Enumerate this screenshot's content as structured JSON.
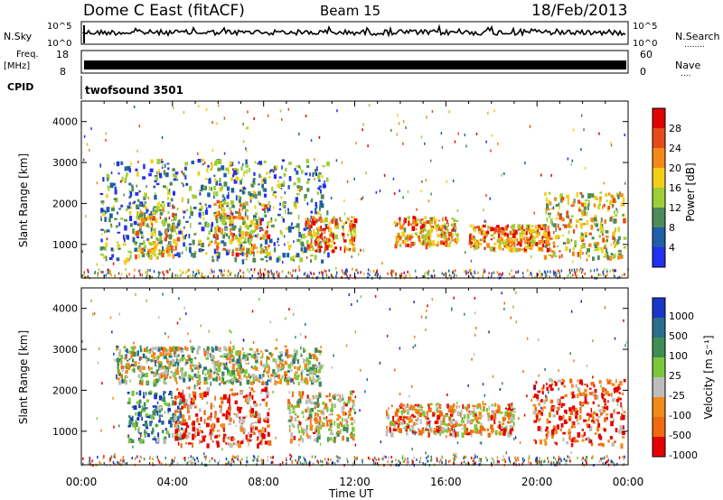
{
  "header": {
    "station": "Dome C East (fitACF)",
    "beam": "Beam 15",
    "date": "18/Feb/2013"
  },
  "side_labels": {
    "nsky": "N.Sky",
    "freq": "Freq.",
    "freq_unit": "[MHz]",
    "cpid": "CPID",
    "nsearch": "N.Search",
    "nave": "Nave",
    "dots": "........",
    "dots_short": "...."
  },
  "noise_panel": {
    "left_ticks": [
      "10^5",
      "10^0"
    ],
    "right_ticks": [
      "10^5",
      "10^0"
    ]
  },
  "freq_panel": {
    "left_ticks": [
      "18",
      "8"
    ],
    "right_ticks": [
      "60",
      "0"
    ]
  },
  "cpid_panel": {
    "program": "twofsound 3501"
  },
  "chart_data": [
    {
      "type": "heatmap",
      "name": "power",
      "ylabel": "Slant Range [km]",
      "yticks": [
        "4000",
        "3000",
        "2000",
        "1000"
      ],
      "colorbar_label": "Power [dB]",
      "colorbar_ticks": [
        "28",
        "24",
        "20",
        "16",
        "12",
        "8",
        "4"
      ],
      "colors": [
        "#2430f0",
        "#1f5ea8",
        "#4e8a5a",
        "#9ccf38",
        "#f2cf18",
        "#f38a18",
        "#e8491a",
        "#e00000"
      ],
      "regions": [
        {
          "t0": 0.8,
          "t1": 10.8,
          "r0": 620,
          "r1": 3100,
          "level": 0.3
        },
        {
          "t0": 2.3,
          "t1": 4.2,
          "r0": 750,
          "r1": 2000,
          "level": 0.55
        },
        {
          "t0": 5.8,
          "t1": 8.2,
          "r0": 800,
          "r1": 2100,
          "level": 0.6
        },
        {
          "t0": 9.8,
          "t1": 12.0,
          "r0": 850,
          "r1": 1700,
          "level": 0.7
        },
        {
          "t0": 13.7,
          "t1": 16.5,
          "r0": 1000,
          "r1": 1700,
          "level": 0.65
        },
        {
          "t0": 17.0,
          "t1": 20.5,
          "r0": 900,
          "r1": 1500,
          "level": 0.7
        },
        {
          "t0": 20.3,
          "t1": 23.8,
          "r0": 700,
          "r1": 2300,
          "level": 0.55
        }
      ]
    },
    {
      "type": "heatmap",
      "name": "velocity",
      "xlabel": "Time UT",
      "ylabel": "Slant Range [km]",
      "xticks": [
        "00:00",
        "04:00",
        "08:00",
        "12:00",
        "16:00",
        "20:00",
        "00:00"
      ],
      "yticks": [
        "4000",
        "3000",
        "2000",
        "1000"
      ],
      "colorbar_label": "Velocity [m s⁻¹]",
      "colorbar_ticks": [
        "1000",
        "500",
        "100",
        "25",
        "-25",
        "-100",
        "-500",
        "-1000"
      ],
      "colors": [
        "#1a36c8",
        "#2a6e8e",
        "#3f8c55",
        "#7cc83a",
        "#bdbdbd",
        "#f08a1a",
        "#f06a10",
        "#e40000"
      ],
      "regions": [
        {
          "t0": 2.0,
          "t1": 4.5,
          "r0": 800,
          "r1": 2000,
          "level": 0.25
        },
        {
          "t0": 4.0,
          "t1": 8.2,
          "r0": 700,
          "r1": 2100,
          "level": 0.8
        },
        {
          "t0": 9.0,
          "t1": 12.0,
          "r0": 800,
          "r1": 2000,
          "level": 0.6
        },
        {
          "t0": 13.3,
          "t1": 19.0,
          "r0": 950,
          "r1": 1700,
          "level": 0.7
        },
        {
          "t0": 19.8,
          "t1": 23.8,
          "r0": 700,
          "r1": 2300,
          "level": 0.85
        },
        {
          "t0": 1.5,
          "t1": 10.5,
          "r0": 2200,
          "r1": 3100,
          "level": 0.5
        }
      ]
    }
  ]
}
